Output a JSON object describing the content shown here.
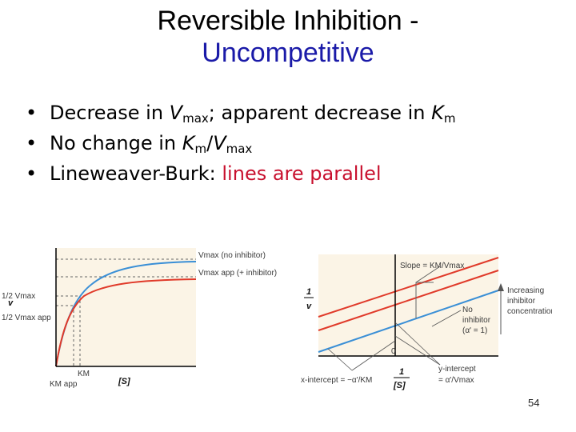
{
  "title": {
    "line1": "Reversible Inhibition -",
    "line2": "Uncompetitive"
  },
  "bullets": {
    "b1_pre": "Decrease in ",
    "b1_V": "V",
    "b1_sub1": "max",
    "b1_mid": "; apparent decrease in ",
    "b1_K": "K",
    "b1_sub2": "m",
    "b2_pre": "No change in ",
    "b2_K": "K",
    "b2_sub1": "m",
    "b2_slash": "/",
    "b2_V": "V",
    "b2_sub2": "max",
    "b3_pre": "Lineweaver-Burk: ",
    "b3_red": "lines are parallel"
  },
  "fig_left": {
    "vmax_label": "Vmax (no inhibitor)",
    "vmax_app_label": "Vmax app (+ inhibitor)",
    "half_vmax": "1/2 Vmax",
    "half_vmax_app": "1/2 Vmax app",
    "y_axis": "v",
    "x_axis": "[S]",
    "km": "KM",
    "km_app": "KM app"
  },
  "fig_right": {
    "slope_label": "Slope = KM/Vmax",
    "y_axis_num": "1",
    "y_axis_den": "v",
    "increasing": "Increasing",
    "inhibitor": "inhibitor",
    "concentration": "concentration",
    "no_inhibitor1": "No",
    "no_inhibitor2": "inhibitor",
    "alpha_label": "(α' = 1)",
    "zero": "0",
    "x_intercept": "x-intercept = −α'/KM",
    "y_intercept": "y-intercept",
    "y_intercept_val": "= α'/Vmax",
    "x_axis_num": "1",
    "x_axis_den": "[S]"
  },
  "page_number": "54",
  "colors": {
    "red_curve": "#e03a2a",
    "blue_curve": "#3a8fd6",
    "title_blue": "#1a1aa8",
    "bullet_red": "#c8102e"
  }
}
